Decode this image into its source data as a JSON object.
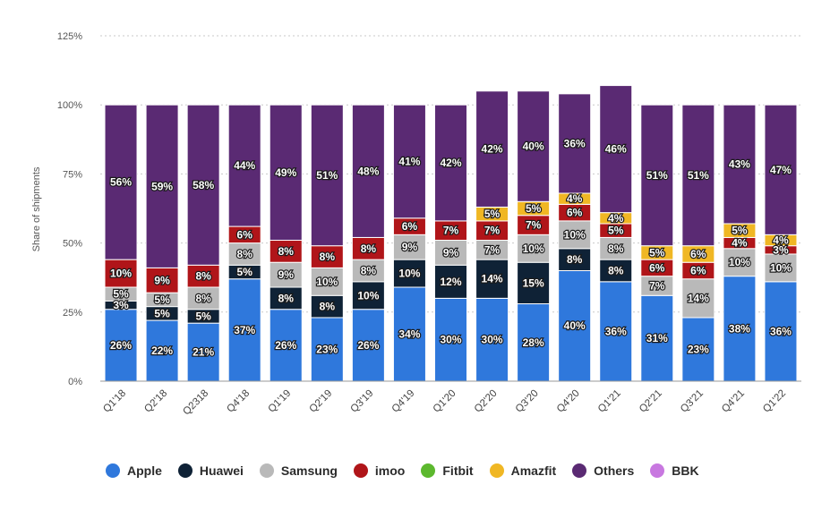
{
  "chart_data": {
    "type": "stacked-bar",
    "title": "",
    "xlabel": "",
    "ylabel": "Share of shipments",
    "ylim": [
      0,
      125
    ],
    "yticks": [
      "0%",
      "25%",
      "50%",
      "75%",
      "100%",
      "125%"
    ],
    "categories": [
      "Q1'18",
      "Q2'18",
      "Q2318",
      "Q4'18",
      "Q1'19",
      "Q2'19",
      "Q3'19",
      "Q4'19",
      "Q1'20",
      "Q2'20",
      "Q3'20",
      "Q4'20",
      "Q1'21",
      "Q2'21",
      "Q3'21",
      "Q4'21",
      "Q1'22"
    ],
    "series": [
      {
        "name": "Apple",
        "color": "#2f78dc",
        "values": [
          26,
          22,
          21,
          37,
          26,
          23,
          26,
          34,
          30,
          30,
          28,
          40,
          36,
          31,
          23,
          38,
          36
        ]
      },
      {
        "name": "Huawei",
        "color": "#0f2236",
        "values": [
          3,
          5,
          5,
          5,
          8,
          8,
          10,
          10,
          12,
          14,
          15,
          8,
          8,
          0,
          0,
          0,
          0
        ]
      },
      {
        "name": "Samsung",
        "color": "#b9b9b9",
        "values": [
          5,
          5,
          8,
          8,
          9,
          10,
          8,
          9,
          9,
          7,
          10,
          10,
          8,
          7,
          14,
          10,
          10
        ]
      },
      {
        "name": "imoo",
        "color": "#b01519",
        "values": [
          10,
          9,
          8,
          6,
          8,
          8,
          8,
          6,
          7,
          7,
          7,
          6,
          5,
          6,
          6,
          4,
          3
        ]
      },
      {
        "name": "Fitbit",
        "color": "#5cb82e",
        "values": [
          0,
          0,
          0,
          0,
          0,
          0,
          0,
          0,
          0,
          0,
          0,
          0,
          0,
          0,
          0,
          0,
          0
        ]
      },
      {
        "name": "Amazfit",
        "color": "#f0b724",
        "values": [
          0,
          0,
          0,
          0,
          0,
          0,
          0,
          0,
          0,
          5,
          5,
          4,
          4,
          5,
          6,
          5,
          4
        ]
      },
      {
        "name": "Others",
        "color": "#5a2a73",
        "values": [
          56,
          59,
          58,
          44,
          49,
          51,
          48,
          41,
          42,
          42,
          40,
          36,
          46,
          51,
          51,
          43,
          47
        ]
      },
      {
        "name": "BBK",
        "color": "#c878e0",
        "values": [
          0,
          0,
          0,
          0,
          0,
          0,
          0,
          0,
          0,
          0,
          0,
          0,
          0,
          0,
          0,
          0,
          0
        ]
      }
    ]
  },
  "legend_names": [
    "Apple",
    "Huawei",
    "Samsung",
    "imoo",
    "Fitbit",
    "Amazfit",
    "Others",
    "BBK"
  ]
}
